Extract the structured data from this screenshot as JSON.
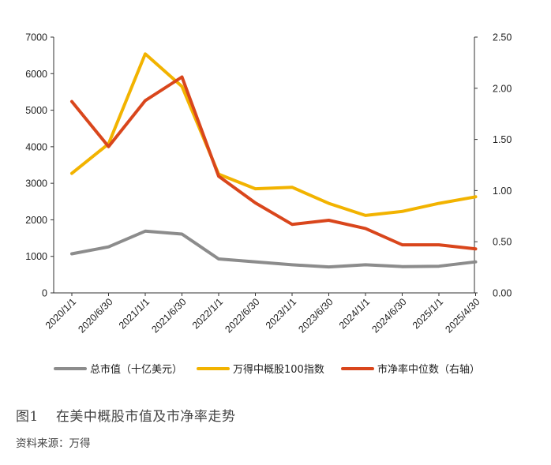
{
  "chart_data": {
    "type": "line",
    "x": [
      "2020/1/1",
      "2020/6/30",
      "2021/1/1",
      "2021/6/30",
      "2022/1/1",
      "2022/6/30",
      "2023/1/1",
      "2023/6/30",
      "2024/1/1",
      "2024/6/30",
      "2025/1/1",
      "2025/4/30"
    ],
    "left_axis": {
      "min": 0,
      "max": 7000,
      "ticks": [
        "0",
        "1000",
        "2000",
        "3000",
        "4000",
        "5000",
        "6000",
        "7000"
      ]
    },
    "right_axis": {
      "min": 0,
      "max": 2.5,
      "ticks": [
        "0.00",
        "0.50",
        "1.00",
        "1.50",
        "2.00",
        "2.50"
      ]
    },
    "grid": false,
    "legend_position": "bottom",
    "series": [
      {
        "name": "总市值（十亿美元）",
        "axis": "left",
        "color": "#8c8c8c",
        "points": [
          [
            "2020/1/1",
            1070
          ],
          [
            "2020/6/30",
            1260
          ],
          [
            "2021/1/1",
            1690
          ],
          [
            "2021/6/30",
            1610
          ],
          [
            "2022/1/1",
            930
          ],
          [
            "2023/1/1",
            770
          ],
          [
            "2023/6/30",
            710
          ],
          [
            "2024/1/1",
            770
          ],
          [
            "2024/6/30",
            720
          ],
          [
            "2025/1/1",
            730
          ],
          [
            "2025/4/30",
            850
          ]
        ]
      },
      {
        "name": "万得中概股100指数",
        "axis": "left",
        "color": "#f2b300",
        "points": [
          [
            "2020/1/1",
            3270
          ],
          [
            "2020/6/30",
            4080
          ],
          [
            "2021/1/1",
            6540
          ],
          [
            "2021/6/30",
            5650
          ],
          [
            "2022/1/1",
            3250
          ],
          [
            "2022/6/30",
            2850
          ],
          [
            "2023/1/1",
            2890
          ],
          [
            "2023/6/30",
            2450
          ],
          [
            "2024/1/1",
            2120
          ],
          [
            "2024/6/30",
            2230
          ],
          [
            "2025/1/1",
            2450
          ],
          [
            "2025/4/30",
            2630
          ]
        ]
      },
      {
        "name": "市净率中位数（右轴）",
        "axis": "right",
        "color": "#d9461c",
        "points": [
          [
            "2020/1/1",
            1.87
          ],
          [
            "2020/6/30",
            1.43
          ],
          [
            "2021/1/1",
            1.88
          ],
          [
            "2021/6/30",
            2.11
          ],
          [
            "2022/1/1",
            1.14
          ],
          [
            "2022/6/30",
            0.88
          ],
          [
            "2023/1/1",
            0.67
          ],
          [
            "2023/6/30",
            0.71
          ],
          [
            "2024/1/1",
            0.63
          ],
          [
            "2024/6/30",
            0.47
          ],
          [
            "2025/1/1",
            0.47
          ],
          [
            "2025/4/30",
            0.43
          ]
        ]
      }
    ]
  },
  "caption": {
    "figure_no": "图1",
    "title": "在美中概股市值及市净率走势"
  },
  "source": "资料来源：万得"
}
